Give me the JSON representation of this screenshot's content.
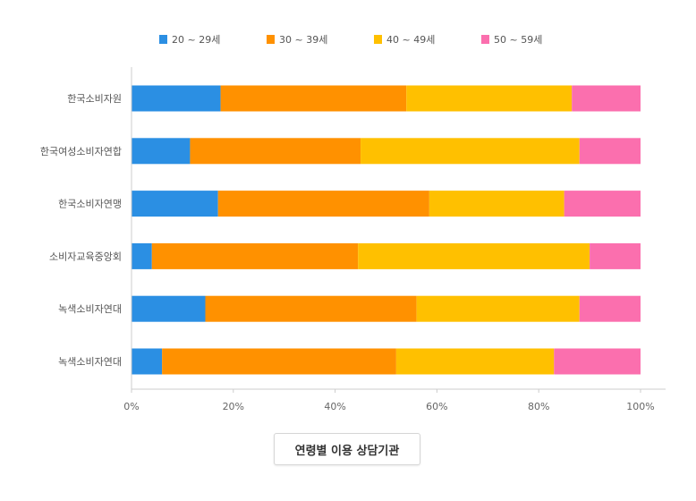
{
  "chart_data": {
    "type": "bar",
    "orientation": "horizontal",
    "stacked": "percent",
    "categories": [
      "한국소비자원",
      "한국여성소비자연합",
      "한국소비자연맹",
      "소비자교육중앙회",
      "녹색소비자연대",
      "녹색소비자연대"
    ],
    "series": [
      {
        "name": "20 ~ 29세",
        "color": "#2b8fe3",
        "values": [
          17.5,
          11.5,
          17.0,
          4.0,
          14.5,
          6.0
        ]
      },
      {
        "name": "30 ~ 39세",
        "color": "#ff9100",
        "values": [
          36.5,
          33.5,
          41.5,
          40.5,
          41.5,
          46.0
        ]
      },
      {
        "name": "40 ~ 49세",
        "color": "#ffc000",
        "values": [
          32.5,
          43.0,
          26.5,
          45.5,
          32.0,
          31.0
        ]
      },
      {
        "name": "50 ~ 59세",
        "color": "#fb6fae",
        "values": [
          13.5,
          12.0,
          15.0,
          10.0,
          12.0,
          17.0
        ]
      }
    ],
    "xlim": [
      0,
      100
    ],
    "xticks": [
      "0%",
      "20%",
      "40%",
      "60%",
      "80%",
      "100%"
    ],
    "legend_position": "top",
    "grid": false
  },
  "caption": "연령별 이용 상담기관"
}
